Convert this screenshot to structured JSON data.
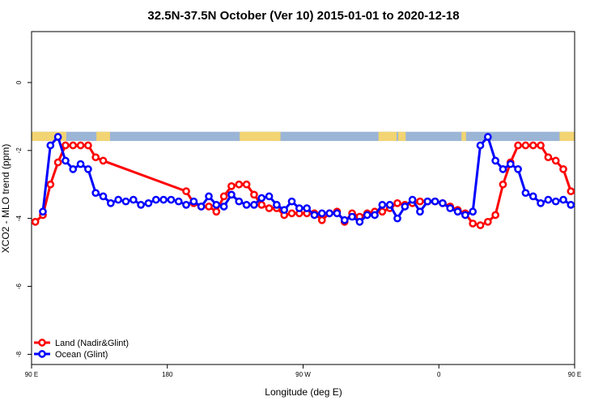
{
  "chart_data": {
    "type": "line",
    "title": "32.5N-37.5N October (Ver 10)   2015-01-01 to 2020-12-18",
    "xlabel": "Longitude (deg E)",
    "ylabel": "XCO2 - MLO trend (ppm)",
    "xlim": [
      90,
      450
    ],
    "ylim": [
      -8.3,
      1.5
    ],
    "x_ticks": [
      {
        "value": 90,
        "label": "90 E"
      },
      {
        "value": 180,
        "label": "180"
      },
      {
        "value": 270,
        "label": "90 W"
      },
      {
        "value": 360,
        "label": "0"
      },
      {
        "value": 450,
        "label": "90 E"
      },
      {
        "value": 540,
        "label": "180"
      }
    ],
    "y_ticks": [
      {
        "value": 0,
        "label": "0"
      },
      {
        "value": -2,
        "label": "-2"
      },
      {
        "value": -4,
        "label": "-4"
      },
      {
        "value": -6,
        "label": "-6"
      },
      {
        "value": -8,
        "label": "-8"
      }
    ],
    "grid": false,
    "legend_position": "bottom-left",
    "map_strip": {
      "y_top": -1.45,
      "y_bottom": -1.72,
      "ocean_color": "#9bb5d6",
      "land_color": "#f2d472"
    },
    "series": [
      {
        "name": "Land (Nadir&Glint)",
        "color": "#ff0000",
        "x": [
          92.5,
          97.5,
          102.5,
          107.5,
          112.5,
          117.5,
          122.5,
          127.5,
          132.5,
          137.5,
          192.5,
          197.5,
          202.5,
          207.5,
          212.5,
          217.5,
          222.5,
          227.5,
          232.5,
          237.5,
          242.5,
          247.5,
          252.5,
          257.5,
          262.5,
          267.5,
          272.5,
          277.5,
          282.5,
          287.5,
          292.5,
          297.5,
          302.5,
          307.5,
          312.5,
          317.5,
          322.5,
          327.5,
          332.5,
          337.5,
          342.5,
          347.5,
          352.5,
          357.5,
          362.5,
          367.5,
          372.5,
          377.5,
          382.5,
          387.5,
          392.5,
          397.5,
          402.5,
          407.5,
          412.5,
          417.5,
          422.5,
          427.5,
          432.5,
          437.5,
          442.5,
          447.5,
          452.5,
          457.5,
          462.5,
          467.5,
          472.5,
          477.5,
          482.5,
          487.5,
          492.5,
          497.5
        ],
        "y": [
          -4.1,
          -3.9,
          -3.0,
          -2.35,
          -1.85,
          -1.85,
          -1.85,
          -1.85,
          -2.2,
          -2.3,
          -3.2,
          -3.55,
          -3.65,
          -3.65,
          -3.8,
          -3.35,
          -3.05,
          -3.0,
          -3.0,
          -3.3,
          -3.6,
          -3.7,
          -3.7,
          -3.9,
          -3.85,
          -3.85,
          -3.85,
          -3.85,
          -4.05,
          -3.85,
          -3.8,
          -4.1,
          -3.85,
          -3.95,
          -3.85,
          -3.8,
          -3.8,
          -3.7,
          -3.55,
          -3.6,
          -3.55,
          -3.5,
          -3.5,
          -3.5,
          -3.55,
          -3.65,
          -3.75,
          -3.85,
          -4.15,
          -4.2,
          -4.1,
          -3.9,
          -3.0,
          -2.35,
          -1.85,
          -1.85,
          -1.85,
          -1.85,
          -2.2,
          -2.3,
          -2.55,
          -3.2,
          -3.3,
          -3.55,
          -3.45,
          -3.5,
          -3.45,
          -3.6,
          -3.6,
          -3.6,
          -3.7,
          -3.65
        ]
      },
      {
        "name": "Ocean (Glint)",
        "color": "#0000ff",
        "x": [
          97.5,
          102.5,
          107.5,
          112.5,
          117.5,
          122.5,
          127.5,
          132.5,
          137.5,
          142.5,
          147.5,
          152.5,
          157.5,
          162.5,
          167.5,
          172.5,
          177.5,
          182.5,
          187.5,
          192.5,
          197.5,
          202.5,
          207.5,
          212.5,
          217.5,
          222.5,
          227.5,
          232.5,
          237.5,
          242.5,
          247.5,
          252.5,
          257.5,
          262.5,
          267.5,
          272.5,
          277.5,
          282.5,
          287.5,
          292.5,
          297.5,
          302.5,
          307.5,
          312.5,
          317.5,
          322.5,
          327.5,
          332.5,
          337.5,
          342.5,
          347.5,
          352.5,
          357.5,
          362.5,
          367.5,
          372.5,
          377.5,
          382.5,
          387.5,
          392.5,
          397.5,
          402.5,
          407.5,
          412.5,
          417.5,
          422.5,
          427.5,
          432.5,
          437.5,
          442.5,
          447.5,
          452.5
        ],
        "y": [
          -3.8,
          -1.85,
          -1.6,
          -2.3,
          -2.55,
          -2.4,
          -2.55,
          -3.25,
          -3.35,
          -3.55,
          -3.45,
          -3.5,
          -3.45,
          -3.6,
          -3.55,
          -3.45,
          -3.45,
          -3.45,
          -3.5,
          -3.6,
          -3.5,
          -3.65,
          -3.35,
          -3.6,
          -3.65,
          -3.3,
          -3.5,
          -3.6,
          -3.6,
          -3.4,
          -3.35,
          -3.6,
          -3.75,
          -3.5,
          -3.7,
          -3.7,
          -3.9,
          -3.85,
          -3.85,
          -3.85,
          -4.05,
          -3.95,
          -4.1,
          -3.9,
          -3.9,
          -3.6,
          -3.6,
          -4.0,
          -3.65,
          -3.45,
          -3.8,
          -3.5,
          -3.5,
          -3.55,
          -3.7,
          -3.8,
          -3.9,
          -3.8,
          -1.85,
          -1.6,
          -2.3,
          -2.55,
          -2.4,
          -2.55,
          -3.25,
          -3.35,
          -3.55,
          -3.45,
          -3.5,
          -3.45,
          -3.6,
          -3.55
        ]
      }
    ]
  }
}
